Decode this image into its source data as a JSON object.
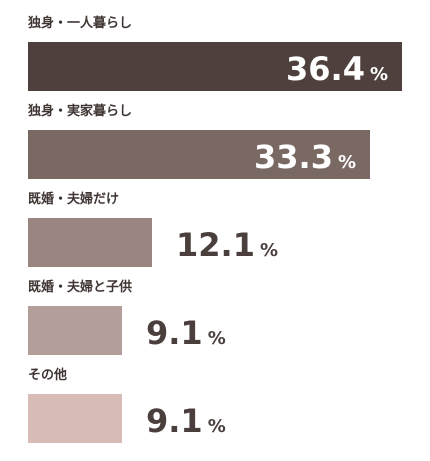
{
  "chart_data": {
    "type": "bar",
    "orientation": "horizontal",
    "categories": [
      "独身・一人暮らし",
      "独身・実家暮らし",
      "既婚・夫婦だけ",
      "既婚・夫婦と子供",
      "その他"
    ],
    "values": [
      36.4,
      33.3,
      12.1,
      9.1,
      9.1
    ],
    "value_labels": [
      "36.4",
      "33.3",
      "12.1",
      "9.1",
      "9.1"
    ],
    "unit": "%",
    "colors": [
      "#4f403d",
      "#7a6863",
      "#9b8580",
      "#b39e9a",
      "#d8bcb8"
    ],
    "title": "",
    "xlabel": "",
    "ylabel": "",
    "xlim": [
      0,
      36.4
    ],
    "grid": false,
    "legend": "none"
  }
}
